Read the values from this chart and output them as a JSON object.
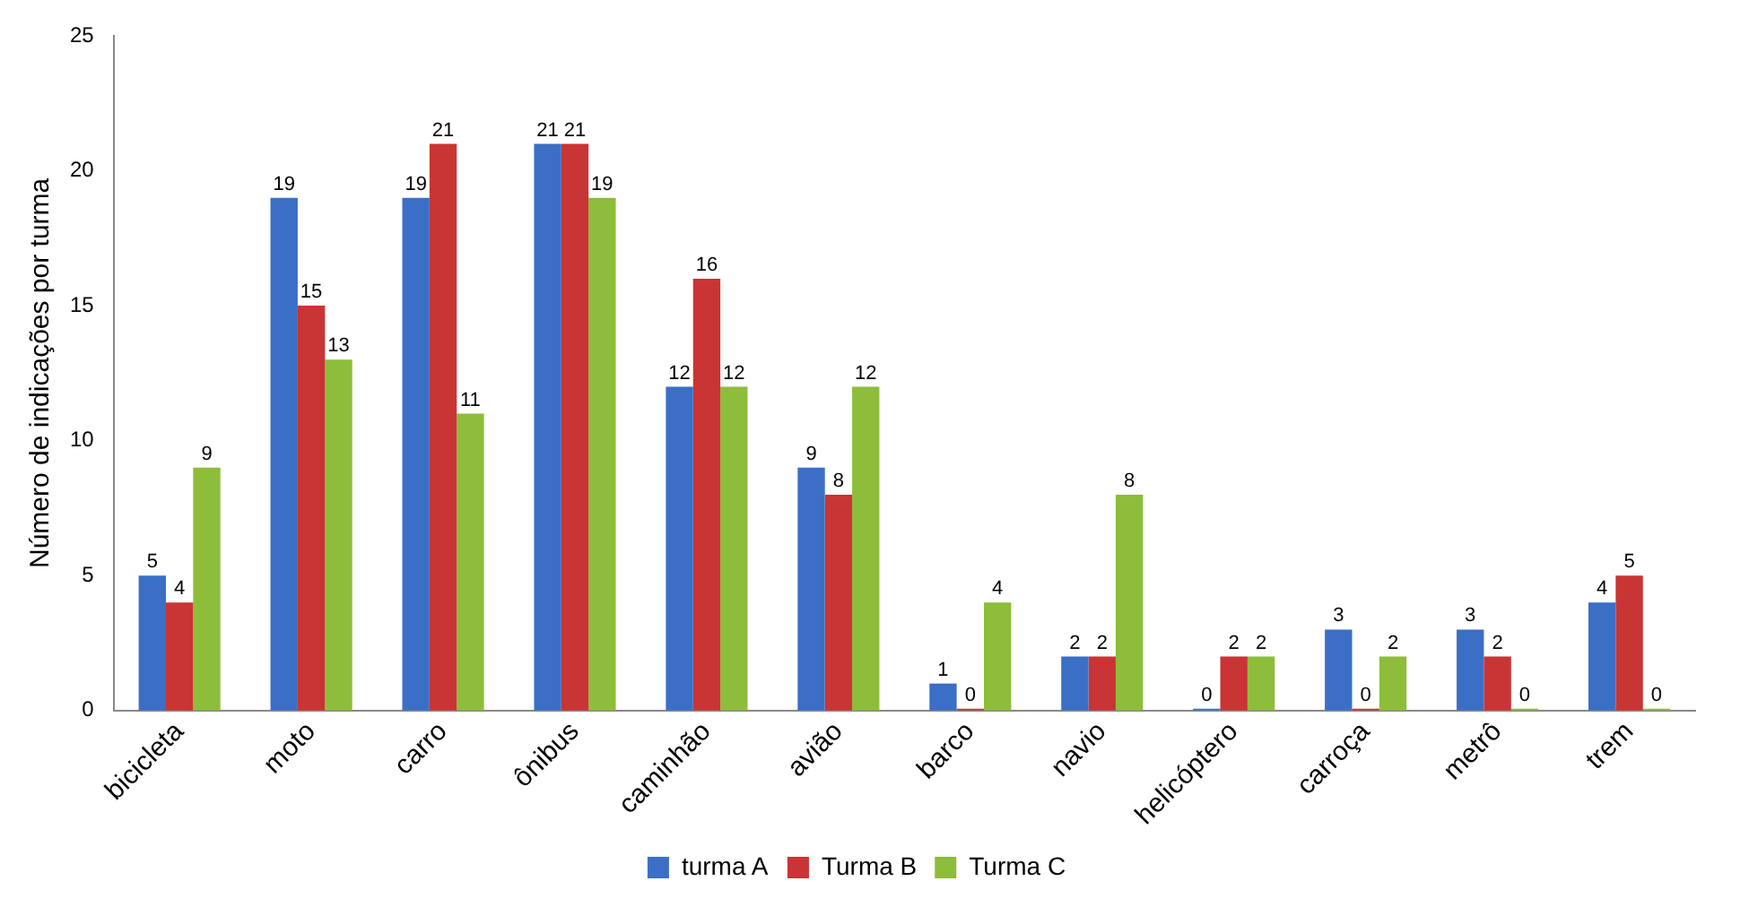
{
  "chart_data": {
    "type": "bar",
    "ylabel": "Número de indicações por turma",
    "categories": [
      "bicicleta",
      "moto",
      "carro",
      "ônibus",
      "caminhão",
      "avião",
      "barco",
      "navio",
      "helicóptero",
      "carroça",
      "metrô",
      "trem"
    ],
    "series": [
      {
        "name": "turma A",
        "color": "#3b6fc6",
        "values": [
          5,
          19,
          19,
          21,
          12,
          9,
          1,
          2,
          0,
          3,
          3,
          4
        ]
      },
      {
        "name": "Turma B",
        "color": "#c93434",
        "values": [
          4,
          15,
          21,
          21,
          16,
          8,
          0,
          2,
          2,
          0,
          2,
          5
        ]
      },
      {
        "name": "Turma C",
        "color": "#8dbd3a",
        "values": [
          9,
          13,
          11,
          19,
          12,
          12,
          4,
          8,
          2,
          2,
          0,
          0
        ]
      }
    ],
    "ylim": [
      0,
      25
    ],
    "yticks": [
      0,
      5,
      10,
      15,
      20,
      25
    ],
    "grid": false,
    "legend": "bottom",
    "data_labels": true
  }
}
